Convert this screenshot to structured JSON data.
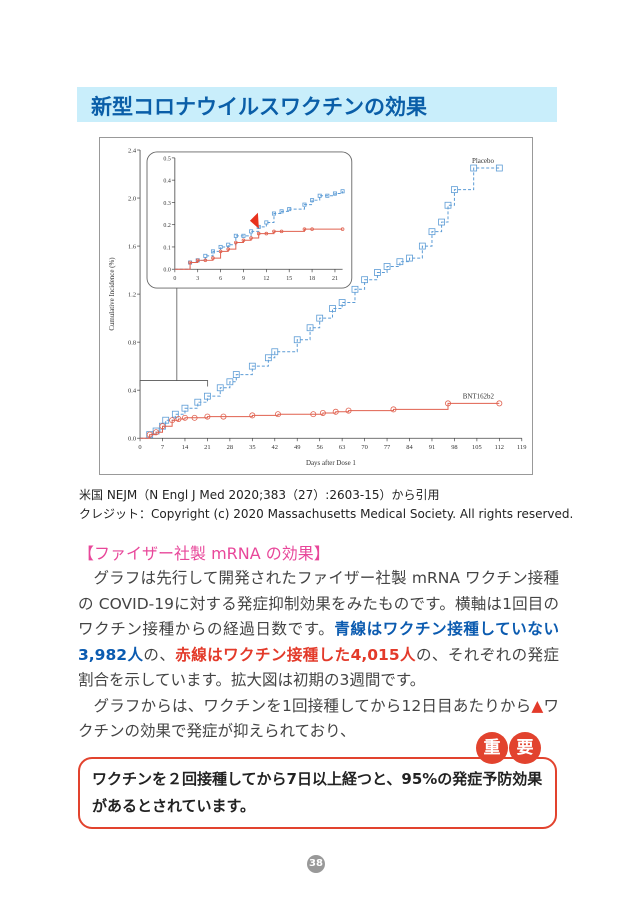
{
  "title": "新型コロナウイルスワクチンの効果",
  "chart_data": {
    "type": "line",
    "xlabel": "Days after Dose 1",
    "ylabel": "Cumulative Incidence (%)",
    "xlim": [
      0,
      119
    ],
    "ylim": [
      0,
      2.4
    ],
    "xticks": [
      "0",
      "7",
      "14",
      "21",
      "28",
      "35",
      "42",
      "49",
      "56",
      "63",
      "70",
      "77",
      "84",
      "91",
      "98",
      "105",
      "112",
      "119"
    ],
    "yticks": [
      "0.0",
      "0.4",
      "0.8",
      "1.2",
      "1.6",
      "2.0",
      "2.4"
    ],
    "series": [
      {
        "name": "Placebo",
        "color": "#5b9bd5",
        "style": "dashed-step",
        "x": [
          0,
          3,
          5,
          7,
          8,
          11,
          14,
          18,
          21,
          25,
          28,
          30,
          35,
          40,
          42,
          49,
          53,
          56,
          60,
          63,
          67,
          70,
          74,
          77,
          81,
          84,
          88,
          91,
          94,
          96,
          98,
          104,
          112
        ],
        "y": [
          0,
          0.03,
          0.06,
          0.1,
          0.15,
          0.2,
          0.25,
          0.3,
          0.35,
          0.42,
          0.47,
          0.53,
          0.6,
          0.67,
          0.72,
          0.82,
          0.92,
          1.0,
          1.08,
          1.13,
          1.24,
          1.32,
          1.38,
          1.43,
          1.47,
          1.5,
          1.6,
          1.72,
          1.8,
          1.94,
          2.07,
          2.25,
          2.25
        ]
      },
      {
        "name": "BNT162b2",
        "color": "#e0614f",
        "style": "solid-step",
        "x": [
          0,
          3,
          5,
          7,
          10,
          12,
          14,
          17,
          21,
          26,
          35,
          43,
          54,
          57,
          61,
          65,
          79,
          96,
          112
        ],
        "y": [
          0,
          0.03,
          0.05,
          0.1,
          0.15,
          0.16,
          0.17,
          0.17,
          0.18,
          0.18,
          0.19,
          0.2,
          0.2,
          0.21,
          0.22,
          0.23,
          0.24,
          0.29,
          0.29
        ]
      }
    ],
    "inset": {
      "xlim": [
        0,
        22
      ],
      "ylim": [
        0,
        0.5
      ],
      "xticks": [
        "0",
        "3",
        "6",
        "9",
        "12",
        "15",
        "18",
        "21"
      ],
      "yticks": [
        "0.0",
        "0.1",
        "0.2",
        "0.3",
        "0.4",
        "0.5"
      ],
      "series": [
        {
          "name": "Placebo",
          "x": [
            0,
            2,
            3,
            4,
            5,
            6,
            7,
            8,
            9,
            10,
            11,
            12,
            13,
            14,
            15,
            17,
            18,
            19,
            20,
            21,
            22
          ],
          "y": [
            0,
            0.03,
            0.04,
            0.06,
            0.08,
            0.1,
            0.11,
            0.15,
            0.15,
            0.17,
            0.19,
            0.21,
            0.25,
            0.26,
            0.27,
            0.29,
            0.31,
            0.33,
            0.33,
            0.34,
            0.35
          ]
        },
        {
          "name": "BNT162b2",
          "x": [
            0,
            2,
            3,
            4,
            5,
            6,
            7,
            8,
            9,
            10,
            11,
            12,
            13,
            14,
            17,
            18,
            22
          ],
          "y": [
            0,
            0.03,
            0.04,
            0.04,
            0.05,
            0.08,
            0.09,
            0.12,
            0.13,
            0.14,
            0.16,
            0.16,
            0.17,
            0.17,
            0.18,
            0.18,
            0.18
          ]
        }
      ],
      "marker_day": 10.5,
      "marker_color": "#e8321e"
    }
  },
  "citation": {
    "line1": "米国 NEJM（N Engl J Med 2020;383（27）:2603-15）から引用",
    "line2": "クレジット：Copyright (c) 2020 Massachusetts Medical Society. All rights reserved."
  },
  "section_heading": "【ファイザー社製 mRNA の効果】",
  "para1": {
    "a": "グラフは先行して開発されたファイザー社製 mRNA ワクチン接種の COVID-19に対する発症抑制効果をみたものです。横軸は1回目のワクチン接種からの経過日数です。",
    "blue": "青線はワクチン接種していない3,982人",
    "b": "の、",
    "red": "赤線はワクチン接種した4,015人",
    "c": "の、それぞれの発症割合を示しています。拡大図は初期の3週間です。"
  },
  "para2": {
    "a": "グラフからは、ワクチンを1回接種してから12日目あたりから",
    "tri": "▲",
    "b": "ワクチンの効果で発症が抑えられており、"
  },
  "important_badge": [
    "重",
    "要"
  ],
  "important_text": "ワクチンを２回接種してから7日以上経つと、95%の発症予防効果があるとされています。",
  "page_number": "38",
  "colors": {
    "title": "#0a5ea8",
    "title_band": "#c9eefb",
    "heading": "#e8479a",
    "blue_text": "#0b5bb0",
    "red_text": "#e33a2a",
    "box_border": "#e2432e"
  }
}
